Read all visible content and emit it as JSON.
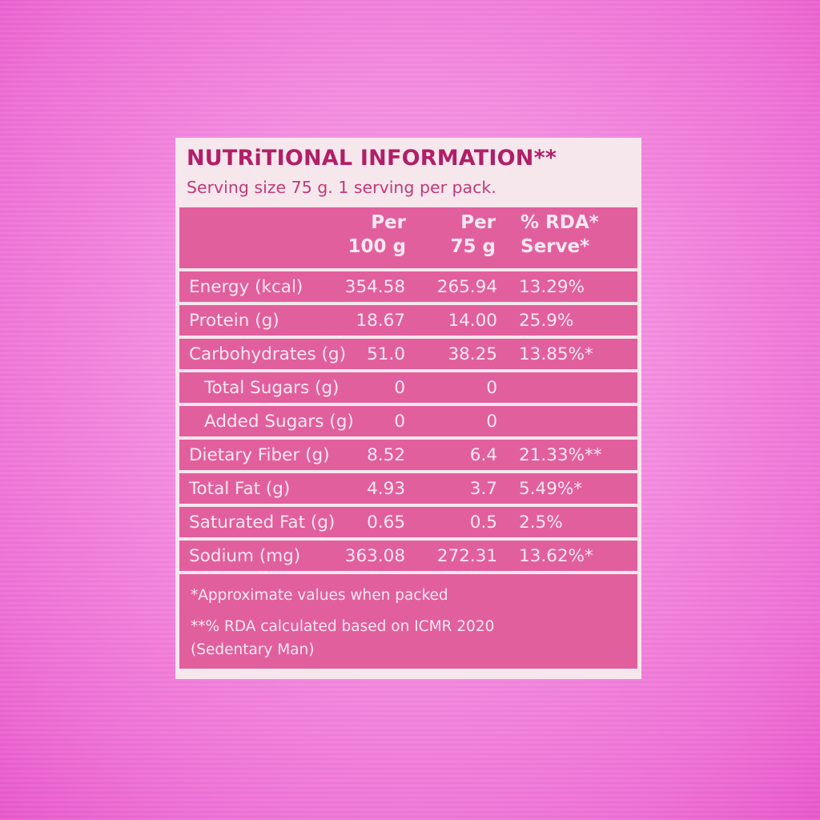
{
  "title": "NUTRiTIONAL INFORMATION**",
  "subtitle": "Serving size 75 g.  1 serving per pack.",
  "columns": {
    "per100": [
      "Per",
      "100 g"
    ],
    "per75": [
      "Per",
      "75 g"
    ],
    "rda": [
      "% RDA*",
      "Serve*"
    ]
  },
  "rows": [
    {
      "name": "Energy (kcal)",
      "per100": "354.58",
      "per75": "265.94",
      "rda": "13.29%"
    },
    {
      "name": "Protein (g)",
      "per100": "18.67",
      "per75": "14.00",
      "rda": "25.9%"
    },
    {
      "name": "Carbohydrates (g)",
      "per100": "51.0",
      "per75": "38.25",
      "rda": "13.85%*"
    },
    {
      "name": "Total Sugars (g)",
      "per100": "0",
      "per75": "0",
      "rda": ""
    },
    {
      "name": "Added Sugars (g)",
      "per100": "0",
      "per75": "0",
      "rda": ""
    },
    {
      "name": "Dietary Fiber (g)",
      "per100": "8.52",
      "per75": "6.4",
      "rda": "21.33%**"
    },
    {
      "name": "Total Fat (g)",
      "per100": "4.93",
      "per75": "3.7",
      "rda": "5.49%*"
    },
    {
      "name": "Saturated Fat (g)",
      "per100": "0.65",
      "per75": "0.5",
      "rda": "2.5%"
    },
    {
      "name": "Sodium (mg)",
      "per100": "363.08",
      "per75": "272.31",
      "rda": "13.62%*"
    }
  ],
  "footnotes": [
    "*Approximate values when packed",
    "**% RDA calculated based on ICMR 2020",
    "(Sedentary Man)"
  ]
}
